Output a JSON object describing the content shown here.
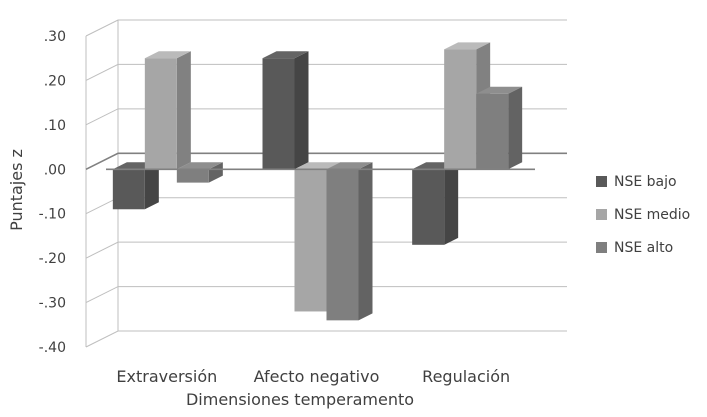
{
  "chart_data": {
    "type": "bar",
    "title": "",
    "xlabel": "Dimensiones temperamento",
    "ylabel": "Puntajes z",
    "categories": [
      "Extraversión",
      "Afecto negativo",
      "Regulación"
    ],
    "series": [
      {
        "name": "NSE bajo",
        "values": [
          -0.09,
          0.25,
          -0.17
        ],
        "color": "#595959"
      },
      {
        "name": "NSE medio",
        "values": [
          0.25,
          -0.32,
          0.27
        ],
        "color": "#a6a6a6"
      },
      {
        "name": "NSE alto",
        "values": [
          -0.03,
          -0.34,
          0.17
        ],
        "color": "#7f7f7f"
      }
    ],
    "yticks": [
      ".30",
      ".20",
      ".10",
      ".00",
      "-.10",
      "-.20",
      "-.30",
      "-.40"
    ],
    "ylim": [
      -0.4,
      0.3
    ],
    "grid": true,
    "legend_position": "right",
    "three_d": true
  }
}
